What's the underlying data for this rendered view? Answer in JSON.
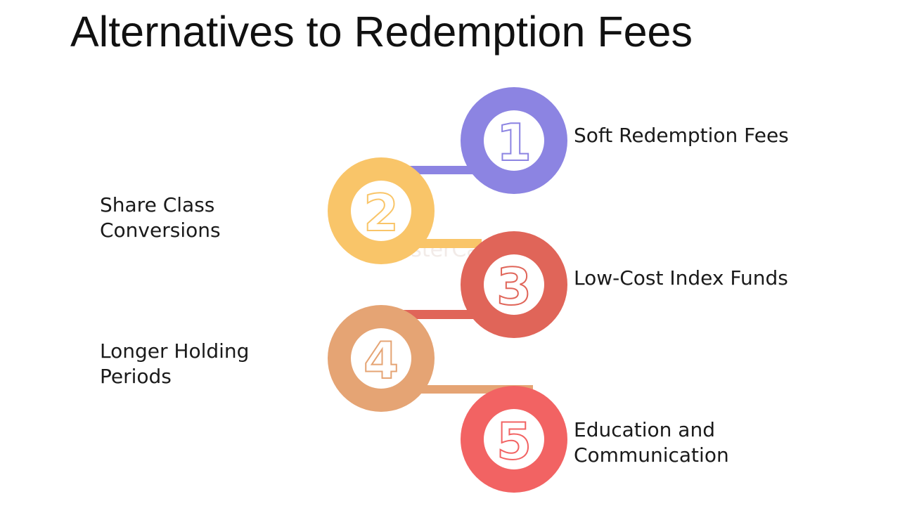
{
  "title": "Alternatives to Redemption Fees",
  "watermark": "FasterCapital",
  "steps": [
    {
      "number": "1",
      "lines": [
        "Soft Redemption Fees"
      ],
      "color": "#8c84e2",
      "side": "right"
    },
    {
      "number": "2",
      "lines": [
        "Share Class",
        "Conversions"
      ],
      "color": "#f9c569",
      "side": "left"
    },
    {
      "number": "3",
      "lines": [
        "Low-Cost Index Funds"
      ],
      "color": "#e06559",
      "side": "right"
    },
    {
      "number": "4",
      "lines": [
        "Longer Holding",
        "Periods"
      ],
      "color": "#e5a474",
      "side": "left"
    },
    {
      "number": "5",
      "lines": [
        "Education and",
        "Communication"
      ],
      "color": "#f26363",
      "side": "right"
    }
  ]
}
